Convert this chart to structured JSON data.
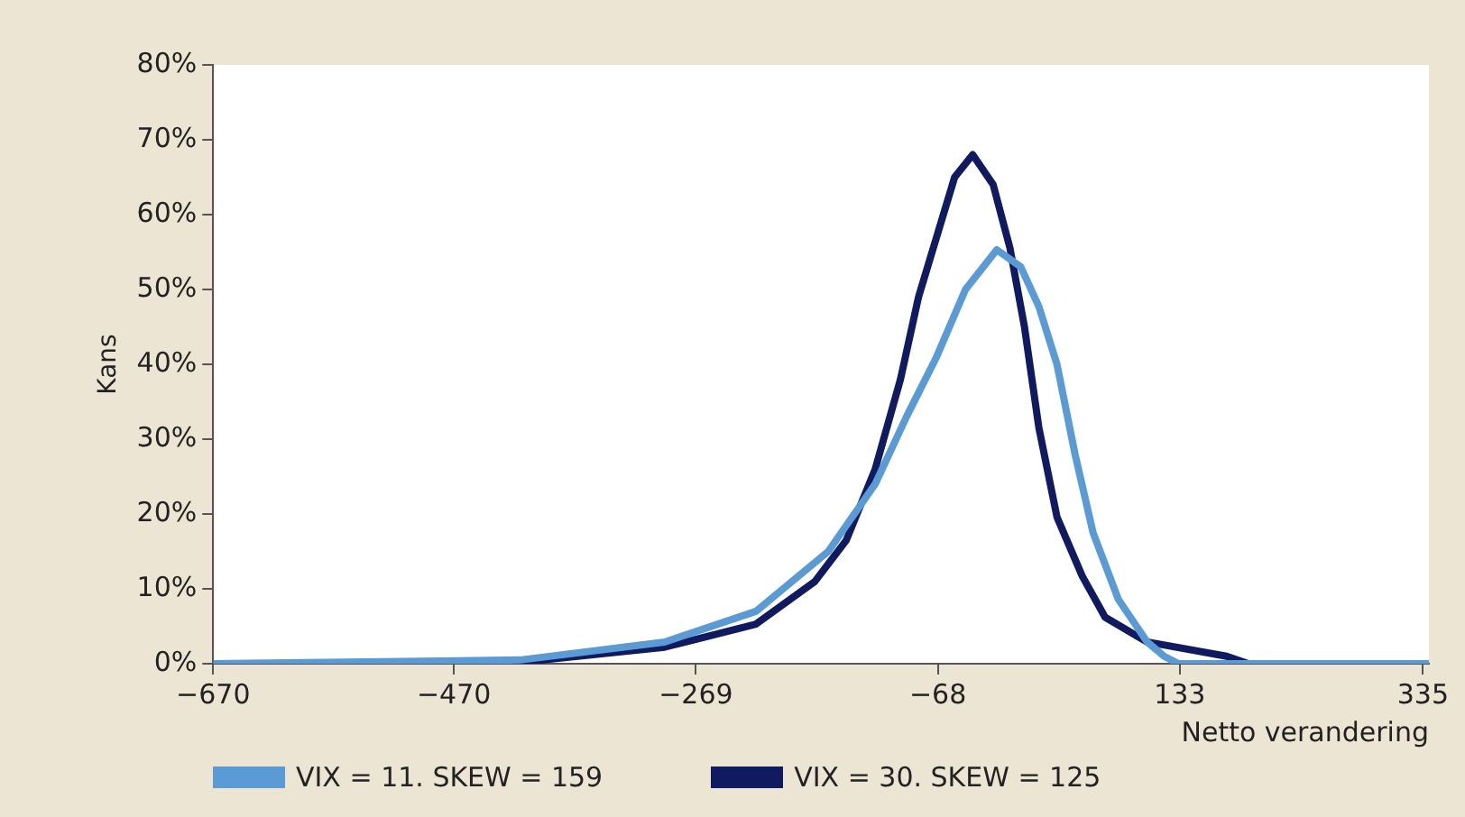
{
  "chart_data": {
    "type": "line",
    "xlabel": "Netto verandering",
    "ylabel": "Kans",
    "xlim": [
      -670,
      340
    ],
    "xticks": [
      -670,
      -470,
      -269,
      -68,
      133,
      335
    ],
    "ylim": [
      0,
      80
    ],
    "yticks": [
      {
        "value": 0,
        "label": "0%"
      },
      {
        "value": 10,
        "label": "10%"
      },
      {
        "value": 20,
        "label": "20%"
      },
      {
        "value": 30,
        "label": "30%"
      },
      {
        "value": 40,
        "label": "40%"
      },
      {
        "value": 50,
        "label": "50%"
      },
      {
        "value": 60,
        "label": "60%"
      },
      {
        "value": 70,
        "label": "70%"
      },
      {
        "value": 80,
        "label": "80%"
      }
    ],
    "grid": false,
    "legend": "bottom",
    "marker": "none",
    "line_style": "solid",
    "series": [
      {
        "name": "VIX = 11. SKEW = 159",
        "color": "#5b9bd5",
        "x": [
          -670,
          -415,
          -295,
          -219,
          -159,
          -120,
          -94,
          -69,
          -45,
          -19,
          1,
          16,
          31,
          46,
          61,
          82,
          106,
          120,
          132,
          340
        ],
        "values": [
          0,
          0.5,
          2.9,
          7,
          15,
          24,
          33,
          41,
          50,
          55.3,
          53,
          47.7,
          40,
          28,
          17.5,
          8.6,
          2.9,
          1,
          0,
          0
        ]
      },
      {
        "name": "VIX = 30. SKEW = 125",
        "color": "#101a60",
        "x": [
          -670,
          -411,
          -396,
          -295,
          -219,
          -170,
          -144,
          -120,
          -99,
          -84,
          -69,
          -54,
          -39,
          -22,
          -8,
          4,
          16,
          31,
          52,
          71,
          106,
          172,
          190,
          340
        ],
        "values": [
          0,
          0,
          0.5,
          2.2,
          5.3,
          11,
          16.5,
          26,
          38,
          49,
          57,
          65,
          68,
          64,
          55.5,
          45,
          31.5,
          19.6,
          11.7,
          6.2,
          2.9,
          1,
          0,
          0
        ]
      }
    ]
  }
}
